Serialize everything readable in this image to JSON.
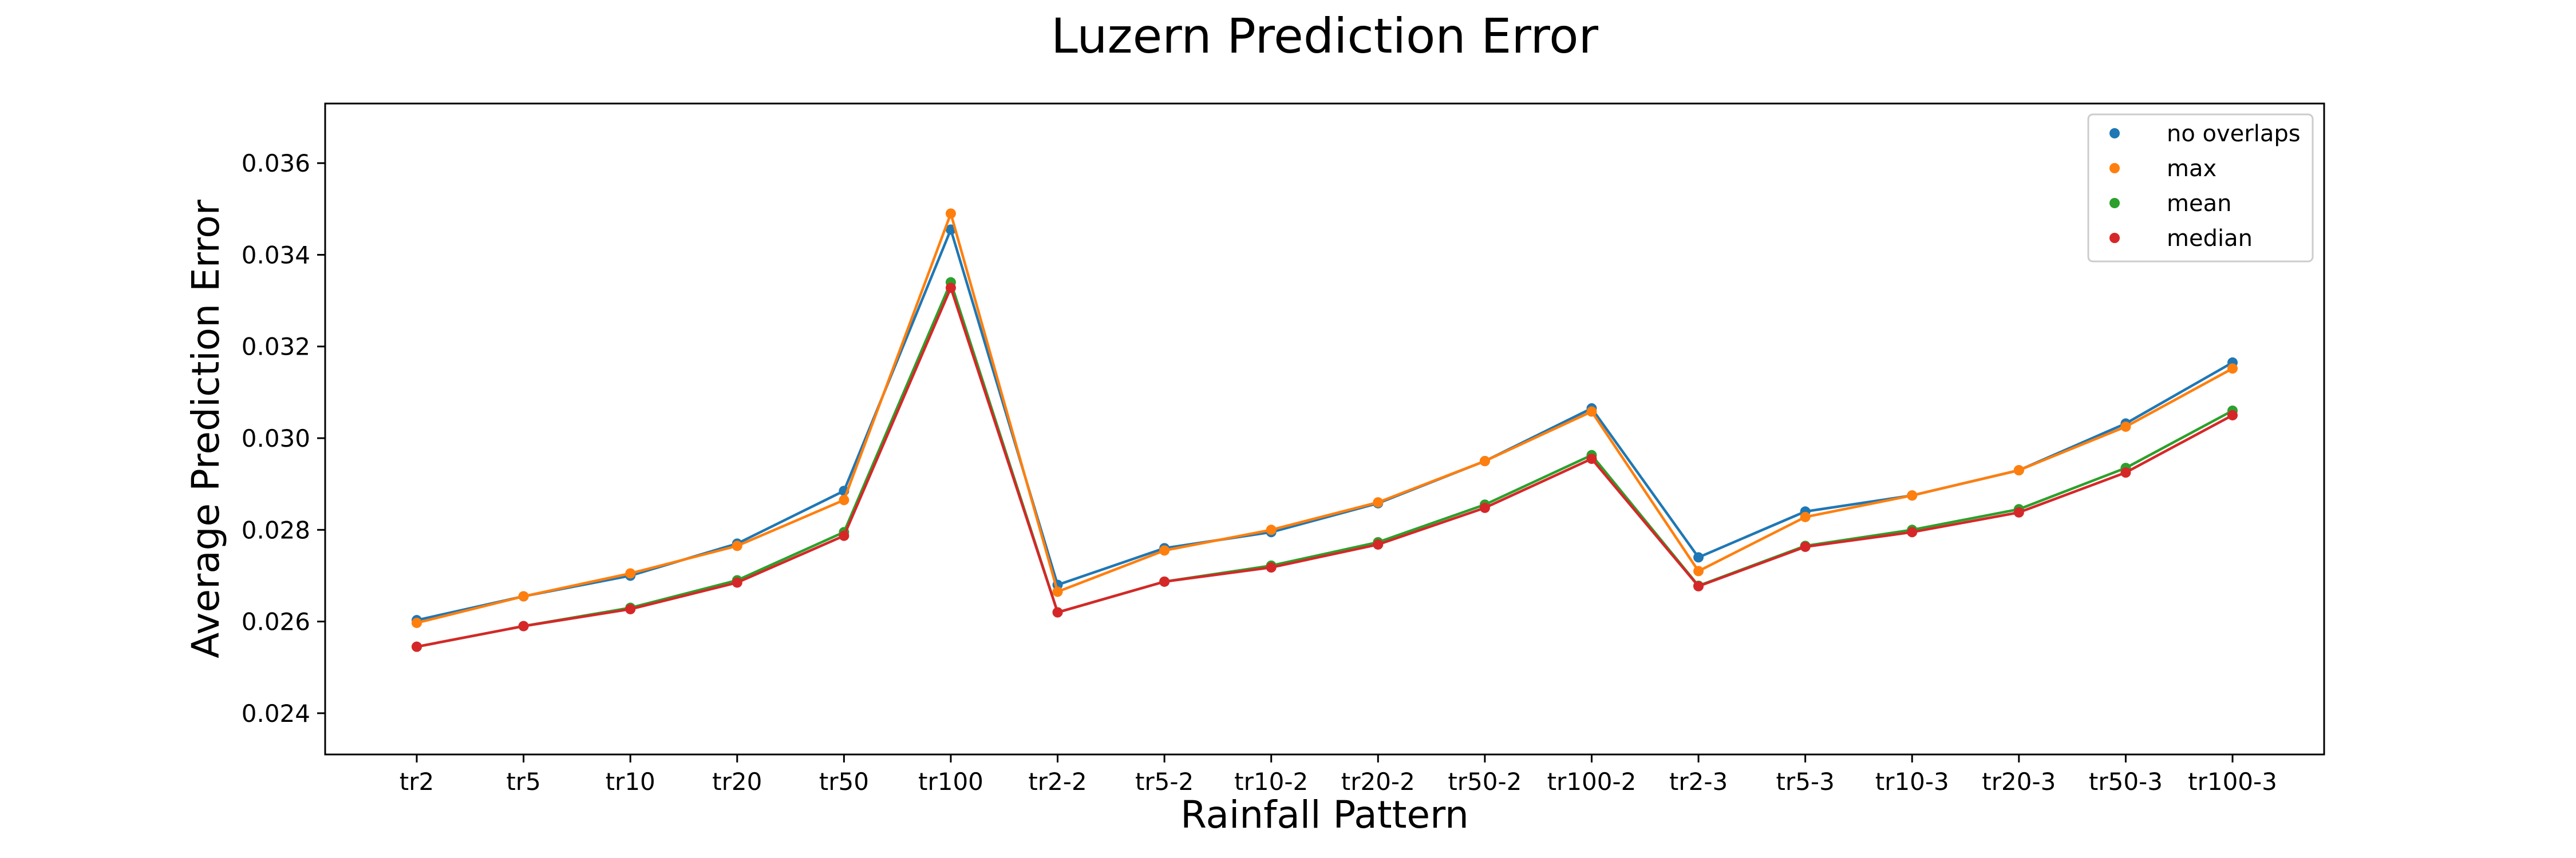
{
  "chart_data": {
    "type": "line",
    "title": "Luzern Prediction Error",
    "xlabel": "Rainfall Pattern",
    "ylabel": "Average Prediction Error",
    "categories": [
      "tr2",
      "tr5",
      "tr10",
      "tr20",
      "tr50",
      "tr100",
      "tr2-2",
      "tr5-2",
      "tr10-2",
      "tr20-2",
      "tr50-2",
      "tr100-2",
      "tr2-3",
      "tr5-3",
      "tr10-3",
      "tr20-3",
      "tr50-3",
      "tr100-3"
    ],
    "ylim": [
      0.0231,
      0.0373
    ],
    "yticks": [
      0.024,
      0.026,
      0.028,
      0.03,
      0.032,
      0.034,
      0.036
    ],
    "ytick_labels": [
      "0.024",
      "0.026",
      "0.028",
      "0.030",
      "0.032",
      "0.034",
      "0.036"
    ],
    "grid": false,
    "legend_position": "top-right",
    "series": [
      {
        "name": "no overlaps",
        "color": "#1f77b4",
        "values": [
          0.02603,
          0.02655,
          0.027,
          0.0277,
          0.02885,
          0.03455,
          0.0268,
          0.0276,
          0.02795,
          0.02858,
          0.0295,
          0.03065,
          0.0274,
          0.0284,
          0.02875,
          0.0293,
          0.03032,
          0.03165
        ]
      },
      {
        "name": "max",
        "color": "#ff7f0e",
        "values": [
          0.02597,
          0.02655,
          0.02705,
          0.02765,
          0.02865,
          0.0349,
          0.02665,
          0.02755,
          0.028,
          0.0286,
          0.0295,
          0.03058,
          0.0271,
          0.02828,
          0.02875,
          0.0293,
          0.03025,
          0.03152
        ]
      },
      {
        "name": "mean",
        "color": "#2ca02c",
        "values": [
          0.02545,
          0.0259,
          0.0263,
          0.0269,
          0.02795,
          0.0334,
          0.0262,
          0.02687,
          0.02722,
          0.02773,
          0.02855,
          0.02963,
          0.02678,
          0.02765,
          0.028,
          0.02845,
          0.02935,
          0.0306
        ]
      },
      {
        "name": "median",
        "color": "#d62728",
        "values": [
          0.02545,
          0.0259,
          0.02627,
          0.02685,
          0.02787,
          0.03328,
          0.0262,
          0.02687,
          0.02718,
          0.02768,
          0.02848,
          0.02955,
          0.02677,
          0.02763,
          0.02795,
          0.02838,
          0.02925,
          0.0305
        ]
      }
    ]
  }
}
